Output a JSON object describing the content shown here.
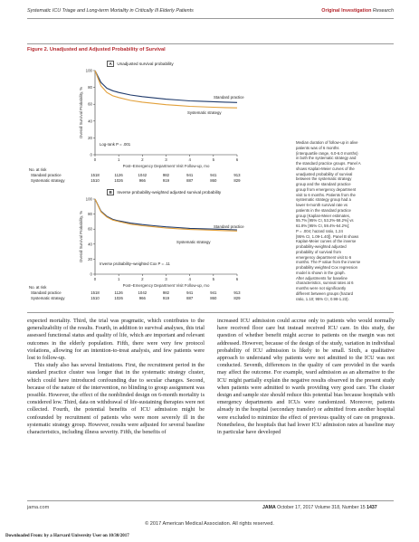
{
  "header": {
    "running_title": "Systematic ICU Triage and Long-term Mortality in Critically Ill Elderly Patients",
    "section": "Original Investigation",
    "subsection": "Research"
  },
  "figure": {
    "title": "Figure 2. Unadjusted and Adjusted Probability of Survival",
    "panels": [
      {
        "letter": "A",
        "label": "Unadjusted survival probability",
        "annotation": "Log-rank P = .001",
        "ylabel": "Overall Survival Probability, %",
        "xlabel": "Post–Emergency Department Visit Follow-up, mo",
        "yticks": [
          "0",
          "20",
          "40",
          "60",
          "80",
          "100"
        ],
        "xticks": [
          "0",
          "1",
          "2",
          "3",
          "4",
          "5",
          "6"
        ],
        "curve_labels": [
          "Standard practice",
          "Systematic strategy"
        ],
        "at_risk_title": "No. at risk",
        "at_risk": [
          {
            "group": "Standard practice",
            "counts": [
              "1518",
              "1126",
              "1042",
              "982",
              "941",
              "941",
              "913"
            ]
          },
          {
            "group": "Systematic strategy",
            "counts": [
              "1510",
              "1026",
              "966",
              "919",
              "887",
              "860",
              "829"
            ]
          }
        ]
      },
      {
        "letter": "B",
        "label": "Inverse probability-weighted adjusted survival probability",
        "annotation": "Inverse probability–weighted Cox P = .11",
        "ylabel": "Overall Survival Probability, %",
        "xlabel": "Post–Emergency Department Visit Follow-up, mo",
        "yticks": [
          "0",
          "20",
          "40",
          "60",
          "80",
          "100"
        ],
        "xticks": [
          "0",
          "1",
          "2",
          "3",
          "4",
          "5",
          "6"
        ],
        "curve_labels": [
          "Standard practice",
          "Systematic strategy"
        ],
        "at_risk_title": "No. at risk",
        "at_risk": [
          {
            "group": "Standard practice",
            "counts": [
              "1518",
              "1126",
              "1042",
              "982",
              "941",
              "941",
              "913"
            ]
          },
          {
            "group": "Systematic strategy",
            "counts": [
              "1510",
              "1026",
              "966",
              "919",
              "887",
              "860",
              "829"
            ]
          }
        ]
      }
    ],
    "side_note": [
      "Median duration of follow-up in alive",
      "patients was of 6 months",
      "(interquartile range, 6.0-6.0 months)",
      "in both the systematic strategy and",
      "the standard practice groups. Panel A",
      "shows Kaplan-Meier curves of the",
      "unadjusted probability of survival",
      "between the systematic strategy",
      "group and the standard practice",
      "group from emergency department",
      "visit to 6 months. Patients from the",
      "systematic strategy group had a",
      "lower 6-month survival rate vs",
      "patients in the standard practice",
      "group (Kaplan-Meier estimates,",
      "55.7% [95% CI, 53.2%-58.2%] vs",
      "61.8% [95% CI, 59.4%-64.2%];",
      "P = .004; hazard ratio, 1.24",
      "[95% CI, 1.09-1.40]). Panel B shows",
      "Kaplan-Meier curves of the inverse",
      "probability-weighted adjusted",
      "probability of survival from",
      "emergency department visit to 6",
      "months. The P value from the inverse",
      "probability weighted Cox regression",
      "model is shown in the graph.",
      "After adjustments for baseline",
      "characteristics, survival rates at 6",
      "months were not significantly",
      "different between groups (hazard",
      "ratio, 1.10; 95% CI, 0.98-1.23)."
    ]
  },
  "chart_data": [
    {
      "type": "line",
      "title": "Unadjusted survival probability",
      "xlabel": "Post–Emergency Department Visit Follow-up, mo",
      "ylabel": "Overall Survival Probability, %",
      "xlim": [
        0,
        6
      ],
      "ylim": [
        0,
        100
      ],
      "series": [
        {
          "name": "Standard practice",
          "color": "#1f3a6b",
          "x": [
            0,
            0.25,
            0.5,
            0.75,
            1,
            1.5,
            2,
            2.5,
            3,
            3.5,
            4,
            4.5,
            5,
            5.5,
            6
          ],
          "values": [
            100,
            86,
            79,
            76,
            74,
            71,
            69,
            67.5,
            66,
            65,
            64,
            63.5,
            63,
            62.5,
            62
          ]
        },
        {
          "name": "Systematic strategy",
          "color": "#e2a03a",
          "x": [
            0,
            0.25,
            0.5,
            0.75,
            1,
            1.5,
            2,
            2.5,
            3,
            3.5,
            4,
            4.5,
            5,
            5.5,
            6
          ],
          "values": [
            100,
            82,
            74,
            70,
            68,
            64.5,
            62.5,
            61,
            59.5,
            58.5,
            57.5,
            57,
            56.5,
            56,
            55.7
          ]
        }
      ]
    },
    {
      "type": "line",
      "title": "Inverse probability-weighted adjusted survival probability",
      "xlabel": "Post–Emergency Department Visit Follow-up, mo",
      "ylabel": "Overall Survival Probability, %",
      "xlim": [
        0,
        6
      ],
      "ylim": [
        0,
        100
      ],
      "series": [
        {
          "name": "Standard practice",
          "color": "#1f3a6b",
          "x": [
            0,
            0.25,
            0.5,
            0.75,
            1,
            1.5,
            2,
            2.5,
            3,
            3.5,
            4,
            4.5,
            5,
            5.5,
            6
          ],
          "values": [
            100,
            84,
            77,
            73,
            71,
            68,
            66,
            64.5,
            63,
            62,
            61,
            60.5,
            60,
            59.5,
            59
          ]
        },
        {
          "name": "Systematic strategy",
          "color": "#e2a03a",
          "x": [
            0,
            0.25,
            0.5,
            0.75,
            1,
            1.5,
            2,
            2.5,
            3,
            3.5,
            4,
            4.5,
            5,
            5.5,
            6
          ],
          "values": [
            100,
            83,
            76,
            72,
            70,
            66.5,
            64.5,
            63,
            61.5,
            60.5,
            59.5,
            59,
            58.5,
            58,
            57.5
          ]
        }
      ]
    }
  ],
  "body": {
    "col1": [
      "expected mortality. Third, the trial was pragmatic, which contributes to the generalizability of the results. Fourth, in addition to survival analyses, this trial assessed functional status and quality of life, which are important and relevant outcomes in the elderly population. Fifth, there were very few protocol violations, allowing for an intention-to-treat analysis, and few patients were lost to follow-up.",
      "This study also has several limitations. First, the recruitment period in the standard practice cluster was longer that in the systematic strategy cluster, which could have introduced confounding due to secular changes. Second, because of the nature of the intervention, no blinding to group assignment was possible. However, the effect of the nonblinded design on 6-month mortality is considered low. Third, data on withdrawal of life-sustaining therapies were not collected. Fourth, the potential benefits of ICU admission might be confounded by recruitment of patients who were more severely ill in the systematic strategy group. However, results were adjusted for several baseline characteristics, including illness severity. Fifth, the benefits of"
    ],
    "col2": [
      "increased ICU admission could accrue only to patients who would normally have received floor care but instead received ICU care. In this study, the question of whether benefit might accrue to patients on the margin was not addressed. However, because of the design of the study, variation in individual probability of ICU admission is likely to be small. Sixth, a qualitative approach to understand why patients were not admitted to the ICU was not conducted. Seventh, differences in the quality of care provided in the wards may affect the outcome. For example, ward admission as an alternative to the ICU might partially explain the negative results observed in the present study when patients were admitted to wards providing very good care. The cluster design and sample size should reduce this potential bias because hospitals with emergency departments and ICUs were randomized. Moreover, patients already in the hospital (secondary transfer) or admitted from another hospital were excluded to minimize the effect of previous quality of care on prognosis. Nonetheless, the hospitals that had lower ICU admission rates at baseline may in particular have developed"
    ]
  },
  "footer": {
    "site": "jama.com",
    "journal": "JAMA",
    "issue": "October 17, 2017   Volume 318, Number 15",
    "page": "1437",
    "copyright": "© 2017 American Medical Association. All rights reserved.",
    "download": "Downloaded From: by a Harvard University User on 10/30/2017"
  }
}
